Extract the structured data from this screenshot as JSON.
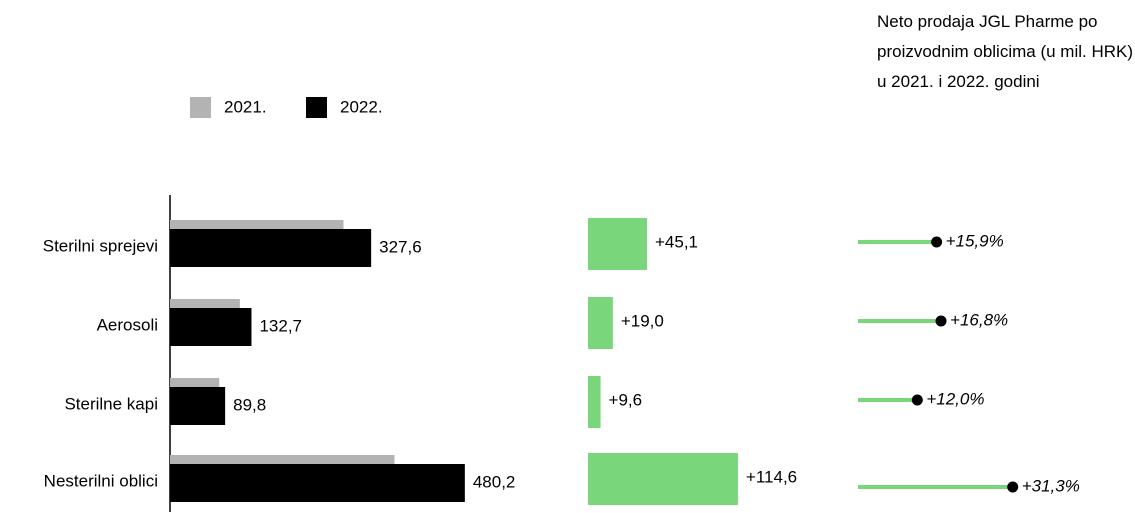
{
  "chart_data": [
    {
      "type": "bar",
      "title": "Neto prodaja JGL Pharme po proizvodnim oblicima (u mil. HRK) u 2021. i 2022. godini",
      "categories": [
        "Sterilni sprejevi",
        "Aerosoli",
        "Sterilne kapi",
        "Nesterilni oblici"
      ],
      "series": [
        {
          "name": "2021.",
          "color": "#b3b3b3",
          "values": [
            282.5,
            113.7,
            80.2,
            365.6
          ]
        },
        {
          "name": "2022.",
          "color": "#000000",
          "values": [
            327.6,
            132.7,
            89.8,
            480.2
          ],
          "value_labels": [
            "327,6",
            "132,7",
            "89,8",
            "480,2"
          ]
        }
      ],
      "xlim": [
        0,
        500
      ]
    },
    {
      "type": "bar",
      "color": "#7ad67a",
      "values": [
        45.1,
        19.0,
        9.6,
        114.6
      ],
      "value_labels": [
        "+45,1",
        "+19,0",
        "+9,6",
        "+114,6"
      ],
      "xlim": [
        0,
        120
      ]
    },
    {
      "type": "lollipop",
      "color": "#7ad67a",
      "values": [
        15.9,
        16.8,
        12.0,
        31.3
      ],
      "value_labels": [
        "+15,9%",
        "+16,8%",
        "+12,0%",
        "+31,3%"
      ],
      "xlim": [
        0,
        35
      ]
    }
  ]
}
